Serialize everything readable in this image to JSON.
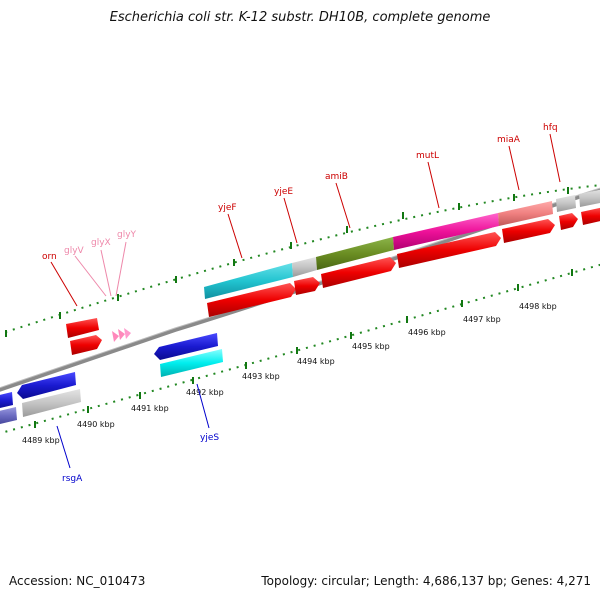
{
  "title": "Escherichia coli str. K-12 substr. DH10B, complete genome",
  "footer": {
    "accession": "Accession: NC_010473",
    "summary": "Topology: circular; Length: 4,686,137 bp; Genes: 4,271"
  },
  "kbp_labels": [
    "4489 kbp",
    "4490 kbp",
    "4491 kbp",
    "4492 kbp",
    "4493 kbp",
    "4494 kbp",
    "4495 kbp",
    "4496 kbp",
    "4497 kbp",
    "4498 kbp"
  ],
  "gene_labels": [
    {
      "name": "orn",
      "color": "#cc0000"
    },
    {
      "name": "glyV",
      "color": "#ee88aa"
    },
    {
      "name": "glyX",
      "color": "#ee88aa"
    },
    {
      "name": "glyY",
      "color": "#ee88aa"
    },
    {
      "name": "yjeF",
      "color": "#cc0000"
    },
    {
      "name": "yjeE",
      "color": "#cc0000"
    },
    {
      "name": "amiB",
      "color": "#cc0000"
    },
    {
      "name": "mutL",
      "color": "#cc0000"
    },
    {
      "name": "miaA",
      "color": "#cc0000"
    },
    {
      "name": "hfq",
      "color": "#cc0000"
    },
    {
      "name": "yjeS",
      "color": "#0000cc"
    },
    {
      "name": "rsgA",
      "color": "#0000cc"
    }
  ],
  "colors": {
    "forward_gene": "#ee0000",
    "reverse_gene": "#1a1ad0",
    "trna": "#ff88bb",
    "tick": "#118811",
    "backbone": "#888888"
  }
}
